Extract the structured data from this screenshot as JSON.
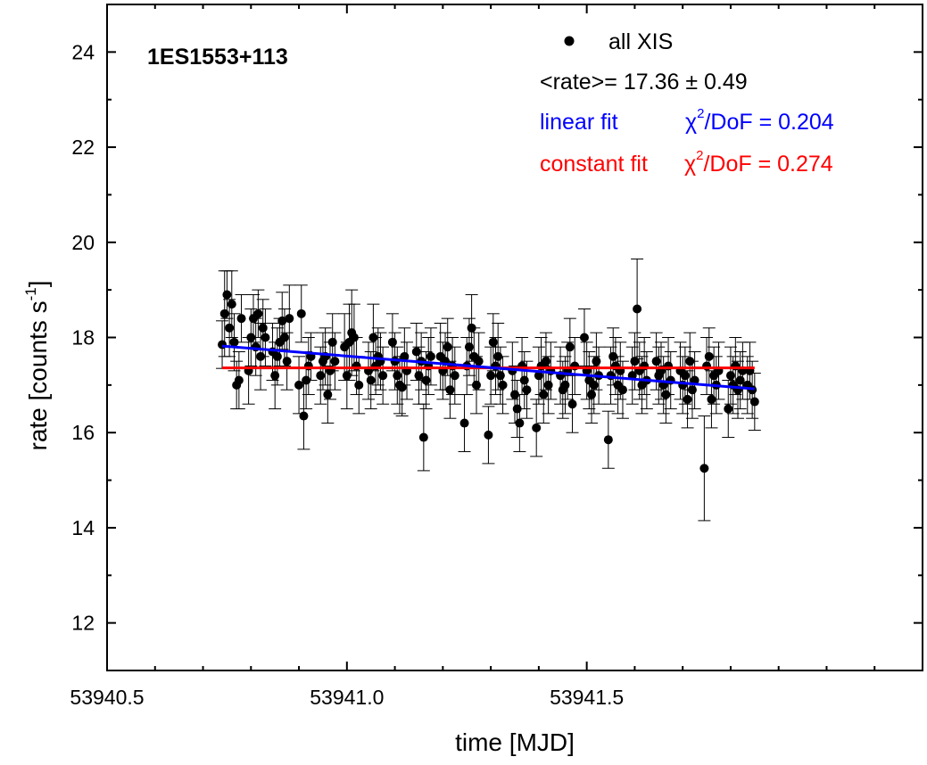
{
  "chart_data": {
    "type": "scatter",
    "title": "1ES1553+113",
    "xlabel": "time [MJD]",
    "ylabel": "rate [counts s",
    "ylabel_sup": "-1",
    "ylabel_close": "]",
    "xlim": [
      53940.5,
      53942.2
    ],
    "ylim": [
      11,
      25
    ],
    "x_major_ticks": [
      53940.5,
      53941.0,
      53941.5
    ],
    "x_tick_labels": [
      "53940.5",
      "53941.0",
      "53941.5"
    ],
    "y_major_ticks": [
      12,
      14,
      16,
      18,
      20,
      22,
      24
    ],
    "y_tick_labels": [
      "12",
      "14",
      "16",
      "18",
      "20",
      "22",
      "24"
    ],
    "grid": false,
    "legend": {
      "placement": "top-right",
      "series_label": "all XIS",
      "mean_text": "<rate>= 17.36 ± 0.49",
      "linear_label": "linear fit",
      "linear_chi": "/DoF = 0.204",
      "constant_label": "constant fit",
      "constant_chi": "/DoF = 0.274",
      "chi_symbol": "χ",
      "chi_sup": "2"
    },
    "colors": {
      "points": "#000000",
      "linear_fit": "#0000ff",
      "constant_fit": "#ff0000"
    },
    "fits": {
      "constant": {
        "x": [
          53940.74,
          53941.85
        ],
        "y": [
          17.36,
          17.36
        ]
      },
      "linear": {
        "x": [
          53940.74,
          53941.85
        ],
        "y": [
          17.82,
          16.92
        ]
      }
    },
    "series": [
      {
        "name": "all XIS",
        "x": [
          53940.74,
          53940.745,
          53940.75,
          53940.755,
          53940.76,
          53940.765,
          53940.77,
          53940.775,
          53940.78,
          53940.795,
          53940.8,
          53940.805,
          53940.81,
          53940.815,
          53940.82,
          53940.825,
          53940.83,
          53940.845,
          53940.85,
          53940.855,
          53940.86,
          53940.865,
          53940.87,
          53940.875,
          53940.88,
          53940.9,
          53940.905,
          53940.91,
          53940.915,
          53940.92,
          53940.925,
          53940.945,
          53940.95,
          53940.955,
          53940.96,
          53940.965,
          53940.97,
          53940.975,
          53940.995,
          53941.0,
          53941.005,
          53941.01,
          53941.015,
          53941.02,
          53941.025,
          53941.045,
          53941.05,
          53941.055,
          53941.06,
          53941.065,
          53941.07,
          53941.075,
          53941.095,
          53941.1,
          53941.105,
          53941.11,
          53941.115,
          53941.12,
          53941.125,
          53941.145,
          53941.15,
          53941.155,
          53941.16,
          53941.165,
          53941.17,
          53941.175,
          53941.195,
          53941.2,
          53941.205,
          53941.21,
          53941.215,
          53941.22,
          53941.225,
          53941.245,
          53941.25,
          53941.255,
          53941.26,
          53941.265,
          53941.27,
          53941.275,
          53941.295,
          53941.3,
          53941.305,
          53941.31,
          53941.315,
          53941.32,
          53941.325,
          53941.345,
          53941.35,
          53941.355,
          53941.36,
          53941.365,
          53941.37,
          53941.375,
          53941.395,
          53941.4,
          53941.405,
          53941.41,
          53941.415,
          53941.42,
          53941.425,
          53941.445,
          53941.45,
          53941.455,
          53941.46,
          53941.465,
          53941.47,
          53941.475,
          53941.495,
          53941.5,
          53941.505,
          53941.51,
          53941.515,
          53941.52,
          53941.525,
          53941.545,
          53941.55,
          53941.555,
          53941.56,
          53941.565,
          53941.57,
          53941.575,
          53941.595,
          53941.6,
          53941.605,
          53941.61,
          53941.615,
          53941.62,
          53941.625,
          53941.645,
          53941.65,
          53941.655,
          53941.66,
          53941.665,
          53941.67,
          53941.675,
          53941.695,
          53941.7,
          53941.705,
          53941.71,
          53941.715,
          53941.72,
          53941.725,
          53941.745,
          53941.75,
          53941.755,
          53941.76,
          53941.765,
          53941.77,
          53941.775,
          53941.795,
          53941.8,
          53941.805,
          53941.81,
          53941.815,
          53941.82,
          53941.825,
          53941.835,
          53941.84,
          53941.845,
          53941.85
        ],
        "y": [
          17.85,
          18.5,
          18.9,
          18.2,
          18.7,
          17.9,
          17.0,
          17.1,
          18.4,
          17.3,
          18.0,
          18.4,
          17.8,
          18.5,
          17.6,
          18.2,
          18.0,
          17.7,
          17.2,
          17.6,
          17.9,
          18.35,
          18.0,
          17.5,
          18.4,
          17.0,
          18.5,
          16.35,
          17.1,
          17.4,
          17.6,
          17.2,
          17.5,
          17.6,
          16.8,
          17.3,
          17.9,
          17.5,
          17.8,
          17.2,
          17.9,
          18.1,
          18.0,
          17.4,
          17.0,
          17.3,
          17.1,
          18.0,
          17.4,
          17.6,
          17.5,
          17.2,
          17.9,
          17.5,
          17.2,
          17.0,
          16.95,
          17.6,
          17.3,
          17.7,
          17.2,
          17.5,
          15.9,
          17.1,
          17.4,
          17.6,
          17.6,
          17.3,
          17.5,
          17.8,
          16.9,
          17.4,
          17.2,
          16.2,
          17.4,
          17.8,
          18.2,
          17.6,
          17.0,
          17.5,
          15.95,
          17.2,
          17.9,
          17.4,
          17.6,
          17.2,
          17.0,
          17.3,
          16.8,
          16.5,
          16.2,
          17.4,
          17.1,
          16.9,
          16.1,
          17.2,
          17.4,
          16.8,
          17.5,
          17.0,
          17.3,
          17.2,
          16.9,
          17.0,
          17.3,
          17.8,
          16.6,
          17.4,
          18.0,
          17.3,
          17.1,
          16.8,
          17.0,
          17.5,
          17.2,
          15.85,
          17.2,
          17.6,
          17.4,
          17.0,
          17.3,
          16.9,
          17.2,
          17.5,
          18.6,
          17.3,
          17.0,
          17.4,
          17.1,
          17.5,
          17.2,
          17.3,
          17.0,
          16.8,
          17.4,
          17.1,
          17.3,
          17.0,
          17.2,
          16.7,
          17.5,
          16.9,
          17.1,
          15.25,
          17.4,
          17.6,
          16.7,
          17.2,
          17.0,
          17.3,
          16.5,
          17.2,
          17.0,
          17.4,
          16.9,
          17.1,
          17.3,
          17.0,
          17.3,
          16.9,
          16.65
        ],
        "err": [
          0.5,
          0.9,
          0.5,
          0.6,
          0.7,
          0.6,
          0.5,
          0.6,
          0.5,
          0.7,
          0.6,
          0.5,
          0.6,
          0.5,
          0.7,
          0.6,
          0.6,
          0.6,
          0.7,
          0.6,
          0.5,
          0.6,
          0.6,
          0.6,
          0.7,
          0.6,
          0.6,
          0.7,
          0.6,
          0.6,
          0.5,
          0.6,
          0.6,
          0.6,
          0.6,
          0.6,
          0.6,
          0.6,
          0.7,
          0.7,
          0.8,
          0.9,
          0.7,
          0.6,
          0.6,
          0.6,
          0.6,
          0.7,
          0.6,
          0.6,
          0.6,
          0.6,
          0.6,
          0.6,
          0.6,
          0.6,
          0.6,
          0.6,
          0.6,
          0.6,
          0.6,
          0.6,
          0.7,
          0.6,
          0.6,
          0.6,
          0.7,
          0.6,
          0.6,
          0.6,
          0.6,
          0.6,
          0.6,
          0.6,
          0.6,
          0.6,
          0.7,
          0.6,
          0.6,
          0.6,
          0.6,
          0.6,
          0.6,
          0.6,
          0.7,
          0.6,
          0.6,
          0.6,
          0.6,
          0.6,
          0.6,
          0.6,
          0.6,
          0.6,
          0.6,
          0.6,
          0.6,
          0.6,
          0.6,
          0.6,
          0.6,
          0.6,
          0.6,
          0.6,
          0.6,
          0.6,
          0.6,
          0.6,
          0.6,
          0.6,
          0.6,
          0.6,
          0.6,
          0.6,
          0.6,
          0.6,
          0.6,
          0.6,
          0.6,
          0.6,
          0.6,
          0.6,
          0.6,
          0.6,
          1.05,
          0.6,
          0.6,
          0.6,
          0.6,
          0.6,
          0.6,
          0.6,
          0.6,
          0.6,
          0.6,
          0.6,
          0.6,
          0.6,
          0.6,
          0.6,
          0.6,
          0.6,
          0.6,
          1.1,
          0.6,
          0.6,
          0.6,
          0.6,
          0.6,
          0.6,
          0.6,
          0.6,
          0.6,
          0.6,
          0.6,
          0.6,
          0.6,
          0.6,
          0.6,
          0.6,
          0.6
        ]
      }
    ]
  }
}
